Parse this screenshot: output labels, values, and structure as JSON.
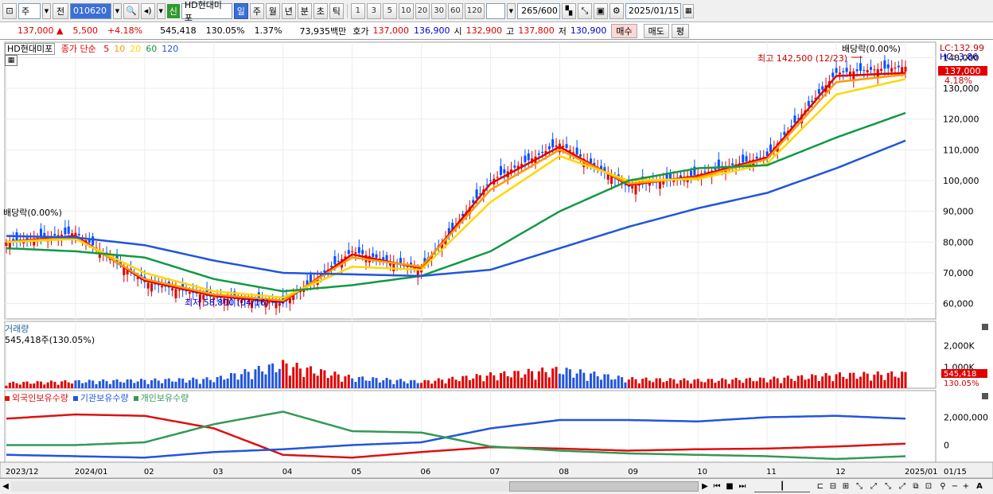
{
  "toolbar": {
    "type_select": "주",
    "prev_label": "전",
    "code": "010620",
    "shin": "신",
    "stock_name": "HD현대미포",
    "periods": [
      "일",
      "주",
      "월",
      "년",
      "분",
      "초",
      "틱"
    ],
    "active_period": "일",
    "intervals": [
      "1",
      "3",
      "5",
      "10",
      "20",
      "30",
      "60",
      "120"
    ],
    "count": "265",
    "count_total": "/600",
    "date": "2025/01/15"
  },
  "info": {
    "price": "137,000",
    "change": "5,500",
    "change_pct": "+4.18%",
    "volume": "545,418",
    "volume_ratio": "130.05%",
    "turnover": "1.37%",
    "amount": "73,935백만",
    "hoga_label": "호가",
    "ask": "137,000",
    "bid": "136,900",
    "open_label": "시",
    "open": "132,900",
    "high_label": "고",
    "high": "137,800",
    "low_label": "저",
    "low": "130,900",
    "buy_label": "매수",
    "sell_label": "매도",
    "eval_label": "평"
  },
  "price_panel": {
    "name": "HD현대미포",
    "ma_label": "종가 단순",
    "ma_periods": [
      "5",
      "10",
      "20",
      "60",
      "120"
    ],
    "ma_colors": [
      "#e00000",
      "#ff9900",
      "#ffd700",
      "#119944",
      "#2255dd"
    ],
    "axis_ticks": [
      "140,000",
      "130,000",
      "120,000",
      "110,000",
      "100,000",
      "90,000",
      "80,000",
      "70,000",
      "60,000"
    ],
    "lc_label": "LC:132.99",
    "hc_label": "HC:-3.86",
    "current_badge": "137,000",
    "current_pct": "4.18%",
    "high_annotation": "최고 142,500 (12/23)",
    "low_annotation": "최저 58,800 (04/16)",
    "dividend_left": "배당락(0.00%)",
    "dividend_right": "배당락(0.00%)"
  },
  "volume_panel": {
    "title": "거래량",
    "value": "545,418주(130.05%)",
    "axis_ticks": [
      "2,000K",
      "1,000K"
    ],
    "badge_value": "545,418",
    "badge_pct": "130.05%"
  },
  "holdings_panel": {
    "series": [
      "외국인보유수량",
      "기관보유수량",
      "개인보유수량"
    ],
    "colors": [
      "#dd1111",
      "#2255dd",
      "#339955"
    ],
    "axis_ticks": [
      "2,000,000",
      "0"
    ]
  },
  "x_axis": {
    "labels": [
      "2023/12",
      "2024/01",
      "02",
      "03",
      "04",
      "05",
      "06",
      "07",
      "08",
      "09",
      "10",
      "11",
      "12",
      "2025/01"
    ],
    "right_label": "01/15"
  },
  "chart_data": [
    {
      "type": "line",
      "title": "",
      "ylabel": "",
      "ylim": [
        55000,
        145000
      ],
      "x": [
        "2023/12",
        "2024/01",
        "02",
        "03",
        "04",
        "05",
        "06",
        "07",
        "08",
        "09",
        "10",
        "11",
        "12",
        "2025/01"
      ],
      "series": [
        {
          "name": "종가",
          "values": [
            80000,
            83000,
            67000,
            62000,
            60000,
            77000,
            71000,
            100000,
            112000,
            98000,
            102000,
            108000,
            135000,
            137000
          ]
        },
        {
          "name": "5",
          "values": [
            80000,
            82000,
            67500,
            62500,
            60500,
            76000,
            71500,
            99000,
            111000,
            98500,
            101500,
            107500,
            134000,
            135000
          ]
        },
        {
          "name": "10",
          "values": [
            80000,
            81500,
            68000,
            63000,
            61000,
            75000,
            72000,
            97000,
            110000,
            99000,
            101000,
            107000,
            132000,
            134500
          ]
        },
        {
          "name": "20",
          "values": [
            80000,
            81000,
            70000,
            64000,
            62000,
            72000,
            71000,
            93000,
            108000,
            100000,
            100500,
            105500,
            128000,
            133000
          ]
        },
        {
          "name": "60",
          "values": [
            78000,
            77000,
            75000,
            68000,
            64000,
            66000,
            69000,
            77000,
            90000,
            100000,
            104000,
            105000,
            114000,
            122000
          ]
        },
        {
          "name": "120",
          "values": [
            82000,
            81500,
            79000,
            74000,
            70000,
            69500,
            69000,
            71000,
            78000,
            85000,
            91000,
            96000,
            104000,
            113000
          ]
        }
      ]
    },
    {
      "type": "bar",
      "title": "거래량",
      "ylim": [
        0,
        3000000
      ],
      "categories": [
        "2023/12",
        "2024/01",
        "02",
        "03",
        "04",
        "05",
        "06",
        "07",
        "08",
        "09",
        "10",
        "11",
        "12",
        "2025/01"
      ],
      "values": [
        200000,
        260000,
        300000,
        350000,
        900000,
        400000,
        250000,
        500000,
        700000,
        350000,
        300000,
        350000,
        500000,
        545418
      ]
    },
    {
      "type": "line",
      "title": "",
      "ylim": [
        -1000000,
        3000000
      ],
      "x": [
        "2023/12",
        "2024/01",
        "02",
        "03",
        "04",
        "05",
        "06",
        "07",
        "08",
        "09",
        "10",
        "11",
        "12",
        "2025/01"
      ],
      "series": [
        {
          "name": "외국인보유수량",
          "values": [
            1900000,
            2200000,
            2100000,
            1200000,
            -700000,
            -900000,
            -500000,
            -150000,
            -250000,
            -400000,
            -300000,
            -250000,
            -100000,
            100000
          ]
        },
        {
          "name": "기관보유수량",
          "values": [
            -700000,
            -800000,
            -900000,
            -500000,
            -300000,
            0,
            200000,
            1200000,
            1800000,
            1800000,
            1700000,
            2000000,
            2100000,
            1900000
          ]
        },
        {
          "name": "개인보유수량",
          "values": [
            0,
            0,
            200000,
            1500000,
            2400000,
            1000000,
            900000,
            -100000,
            -400000,
            -600000,
            -700000,
            -800000,
            -1000000,
            -800000
          ]
        }
      ]
    }
  ]
}
